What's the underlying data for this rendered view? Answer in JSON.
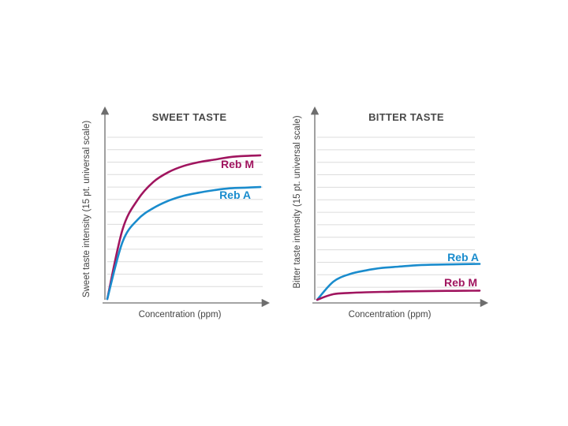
{
  "chart_data": [
    {
      "type": "line",
      "title": "SWEET TASTE",
      "xlabel": "Concentration (ppm)",
      "ylabel": "Sweet taste intensity (15 pt. universal scale)",
      "ylim": [
        0,
        13
      ],
      "grid": true,
      "series": [
        {
          "name": "Reb M",
          "color": "#a0155f",
          "x": [
            0,
            1,
            2,
            3,
            4,
            5,
            6,
            7,
            8,
            9,
            10
          ],
          "values": [
            0,
            5.6,
            8.0,
            9.4,
            10.2,
            10.7,
            11.0,
            11.2,
            11.4,
            11.5,
            11.55
          ]
        },
        {
          "name": "Reb A",
          "color": "#1a8ccd",
          "x": [
            0,
            1,
            2,
            3,
            4,
            5,
            6,
            7,
            8,
            9,
            10
          ],
          "values": [
            0,
            4.6,
            6.4,
            7.3,
            7.9,
            8.3,
            8.55,
            8.75,
            8.9,
            8.95,
            9.0
          ]
        }
      ]
    },
    {
      "type": "line",
      "title": "BITTER TASTE",
      "xlabel": "Concentration (ppm)",
      "ylabel": "Bitter taste intensity (15 pt. universal scale)",
      "ylim": [
        0,
        13
      ],
      "grid": true,
      "series": [
        {
          "name": "Reb A",
          "color": "#1a8ccd",
          "x": [
            0,
            1,
            2,
            3,
            4,
            5,
            6,
            7,
            8,
            9,
            10
          ],
          "values": [
            0,
            1.45,
            2.05,
            2.35,
            2.55,
            2.65,
            2.75,
            2.8,
            2.83,
            2.85,
            2.87
          ]
        },
        {
          "name": "Reb M",
          "color": "#a0155f",
          "x": [
            0,
            1,
            2,
            3,
            4,
            5,
            6,
            7,
            8,
            9,
            10
          ],
          "values": [
            0,
            0.45,
            0.55,
            0.6,
            0.63,
            0.66,
            0.68,
            0.7,
            0.71,
            0.72,
            0.73
          ]
        }
      ]
    }
  ]
}
